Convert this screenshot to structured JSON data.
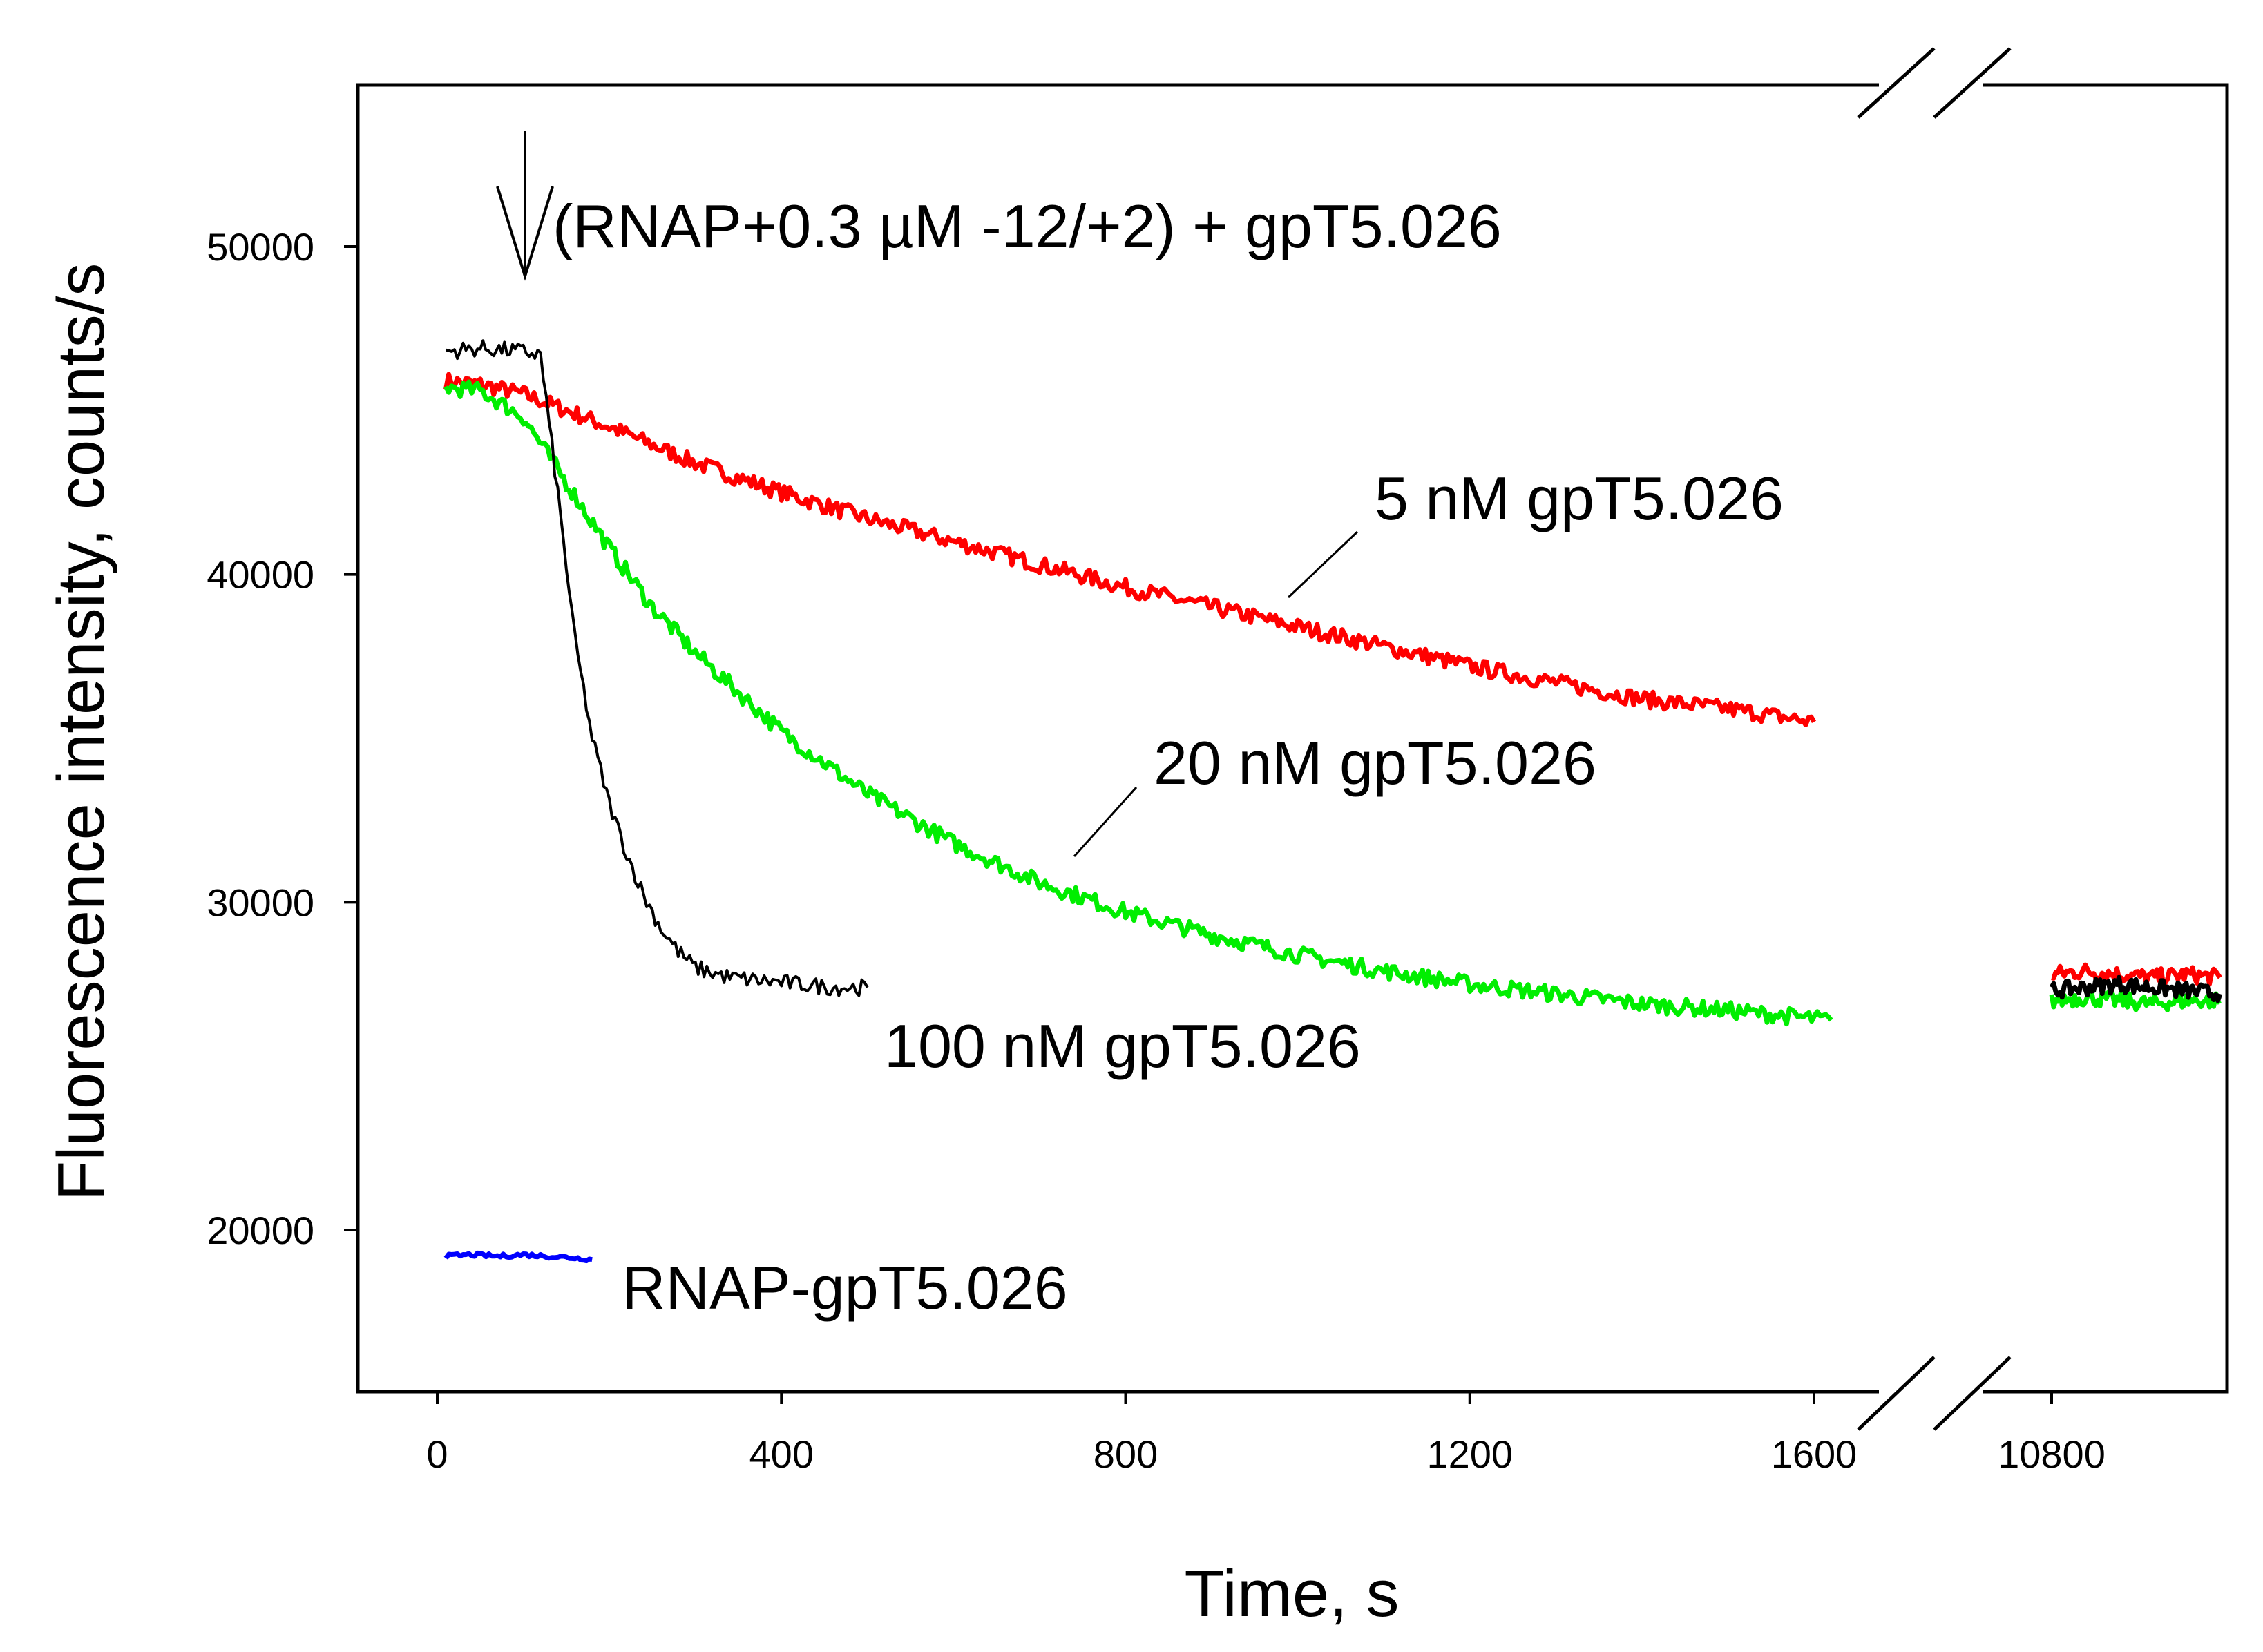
{
  "chart_data": {
    "type": "line",
    "title": "",
    "xlabel": "Time, s",
    "ylabel": "Fluorescence intensity, counts/s",
    "grid": false,
    "xlim_segment1": [
      -100,
      1650
    ],
    "xlim_segment2": [
      10700,
      11200
    ],
    "ylim": [
      15000,
      54500
    ],
    "x_ticks": [
      0,
      400,
      800,
      1200,
      1600,
      10800
    ],
    "y_ticks": [
      20000,
      30000,
      40000,
      50000
    ],
    "axis_break": "between 1600 and 10800",
    "annotations": {
      "addition": "(RNAP+0.3 µM -12/+2) + gpT5.026",
      "label_5nM": "5 nM gpT5.026",
      "label_20nM": "20 nM gpT5.026",
      "label_100nM": "100 nM gpT5.026",
      "label_complex": "RNAP-gpT5.026"
    },
    "series": [
      {
        "name": "100 nM gpT5.026",
        "color": "#000000",
        "x": [
          10,
          50,
          100,
          120,
          140,
          160,
          180,
          200,
          220,
          240,
          260,
          280,
          300,
          340,
          380,
          420,
          460,
          500
        ],
        "y": [
          46800,
          46900,
          46800,
          46700,
          42500,
          38000,
          35000,
          33000,
          31500,
          30200,
          29200,
          28500,
          28000,
          27700,
          27600,
          27500,
          27400,
          27400
        ],
        "x_late": [
          10800,
          10850,
          10900,
          10950,
          11000,
          11050
        ],
        "y_late": [
          27300,
          27400,
          27500,
          27400,
          27300,
          27200
        ]
      },
      {
        "name": "20 nM gpT5.026",
        "color": "#00ee00",
        "x": [
          10,
          50,
          100,
          150,
          200,
          250,
          300,
          400,
          500,
          600,
          700,
          800,
          900,
          1000,
          1100,
          1200,
          1300,
          1400,
          1500,
          1620
        ],
        "y": [
          45700,
          45600,
          44800,
          42800,
          40800,
          39000,
          37600,
          35200,
          33300,
          31800,
          30600,
          29700,
          29000,
          28400,
          27900,
          27500,
          27200,
          26900,
          26700,
          26400
        ],
        "x_late": [
          10800,
          10850,
          10900,
          10950,
          11000,
          11050
        ],
        "y_late": [
          27000,
          27100,
          27000,
          26900,
          27000,
          27000
        ]
      },
      {
        "name": "5 nM gpT5.026",
        "color": "#ff0000",
        "x": [
          10,
          50,
          100,
          150,
          200,
          300,
          400,
          500,
          600,
          700,
          800,
          900,
          1000,
          1100,
          1200,
          1300,
          1400,
          1500,
          1600
        ],
        "y": [
          45900,
          45800,
          45500,
          45000,
          44500,
          43400,
          42500,
          41700,
          41000,
          40300,
          39600,
          39000,
          38400,
          37800,
          37200,
          36700,
          36200,
          35900,
          35500
        ],
        "x_late": [
          10800,
          10850,
          10900,
          10950,
          11000,
          11050
        ],
        "y_late": [
          27800,
          27900,
          27800,
          27700,
          27800,
          27700
        ]
      },
      {
        "name": "RNAP-gpT5.026",
        "color": "#0000ff",
        "x": [
          10,
          40,
          70,
          100,
          130,
          160,
          180
        ],
        "y": [
          19200,
          19250,
          19200,
          19250,
          19200,
          19150,
          19100
        ]
      }
    ]
  }
}
